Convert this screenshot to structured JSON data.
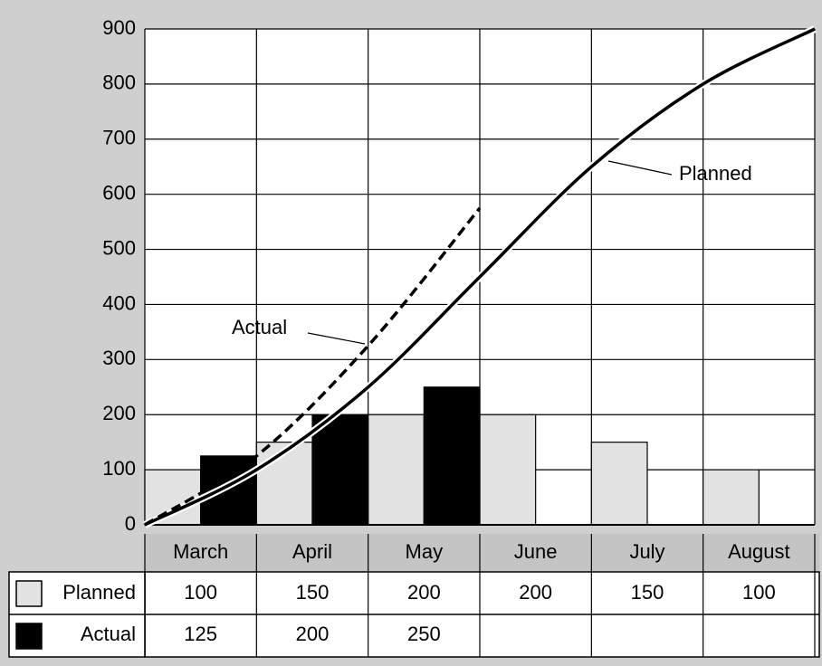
{
  "chart_data": {
    "type": "bar",
    "categories": [
      "March",
      "April",
      "May",
      "June",
      "July",
      "August"
    ],
    "series": [
      {
        "name": "Planned",
        "color": "#e2e2e2",
        "values": [
          100,
          150,
          200,
          200,
          150,
          100
        ]
      },
      {
        "name": "Actual",
        "color": "#000000",
        "values": [
          125,
          200,
          250,
          null,
          null,
          null
        ]
      }
    ],
    "ylim": [
      0,
      900
    ],
    "yticks": [
      0,
      100,
      200,
      300,
      400,
      500,
      600,
      700,
      800,
      900
    ],
    "grid": true,
    "annotations": [
      "Planned",
      "Actual"
    ]
  }
}
